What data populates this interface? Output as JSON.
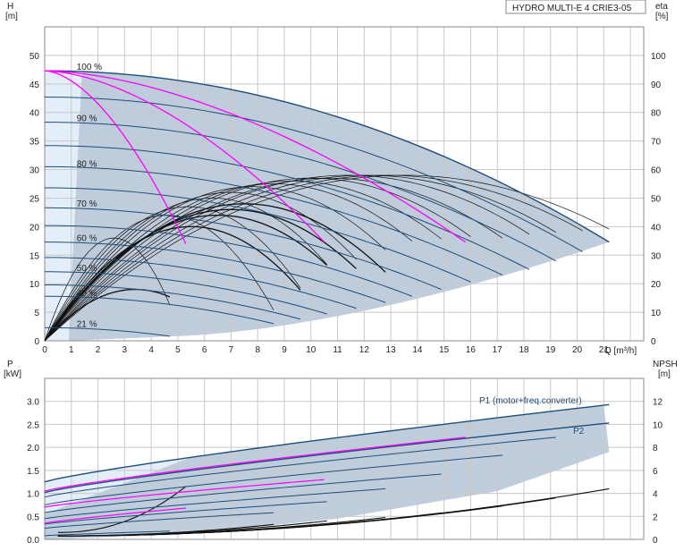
{
  "colors": {
    "envelope_fill": "#b9c8d8",
    "envelope_light": "#e4eef8",
    "envelope_edge": "#1f4e79",
    "curve_dark": "#1f4e79",
    "curve_black": "#111111",
    "curve_magenta": "#ff00ff"
  },
  "chart_data": [
    {
      "type": "line",
      "title": "HYDRO MULTI-E 4 CRIE3-05",
      "xlabel": "Q [m³/h]",
      "ylabel": "H\n[m]",
      "ylabel_right": "eta\n[%]",
      "xlim": [
        0,
        22.5
      ],
      "ylim": [
        0,
        55
      ],
      "ylim_right": [
        0,
        110
      ],
      "x_ticks": [
        "0",
        "1",
        "2",
        "3",
        "4",
        "5",
        "6",
        "7",
        "8",
        "9",
        "10",
        "11",
        "12",
        "13",
        "14",
        "15",
        "16",
        "17",
        "18",
        "19",
        "20",
        "21"
      ],
      "y_ticks": [
        "0",
        "5",
        "10",
        "15",
        "20",
        "25",
        "30",
        "35",
        "40",
        "45",
        "50"
      ],
      "y_right_ticks": [
        "0",
        "10",
        "20",
        "30",
        "40",
        "50",
        "60",
        "70",
        "80",
        "90",
        "100"
      ],
      "speed_labels": [
        {
          "text": "100 %",
          "q": 1.2,
          "h": 47.5
        },
        {
          "text": "90 %",
          "q": 1.2,
          "h": 38.5
        },
        {
          "text": "80 %",
          "q": 1.2,
          "h": 30.5
        },
        {
          "text": "70 %",
          "q": 1.2,
          "h": 23.5
        },
        {
          "text": "60 %",
          "q": 1.2,
          "h": 17.5
        },
        {
          "text": "50 %",
          "q": 1.2,
          "h": 12.2
        },
        {
          "text": "40 %",
          "q": 1.2,
          "h": 7.8
        },
        {
          "text": "21 %",
          "q": 1.2,
          "h": 2.4
        }
      ],
      "head_curves": [
        {
          "name": "100 %",
          "q_max": 21.2,
          "h0": 47.3,
          "h_end": 17.3
        },
        {
          "name": "95 %",
          "q_max": 20.2,
          "h0": 42.7,
          "h_end": 15.6
        },
        {
          "name": "90 %",
          "q_max": 19.2,
          "h0": 38.3,
          "h_end": 14.0
        },
        {
          "name": "85 %",
          "q_max": 18.2,
          "h0": 34.2,
          "h_end": 12.5
        },
        {
          "name": "80 %",
          "q_max": 17.2,
          "h0": 30.5,
          "h_end": 11.5
        },
        {
          "name": "75 %",
          "q_max": 16.0,
          "h0": 26.8,
          "h_end": 10.3
        },
        {
          "name": "70 %",
          "q_max": 14.9,
          "h0": 23.3,
          "h_end": 9.0
        },
        {
          "name": "65 %",
          "q_max": 13.8,
          "h0": 20.2,
          "h_end": 7.8
        },
        {
          "name": "60 %",
          "q_max": 12.8,
          "h0": 17.3,
          "h_end": 6.7
        },
        {
          "name": "55 %",
          "q_max": 11.7,
          "h0": 14.6,
          "h_end": 5.7
        },
        {
          "name": "50 %",
          "q_max": 10.6,
          "h0": 12.1,
          "h_end": 4.7
        },
        {
          "name": "45 %",
          "q_max": 9.6,
          "h0": 9.8,
          "h_end": 3.8
        },
        {
          "name": "40 %",
          "q_max": 8.6,
          "h0": 7.8,
          "h_end": 3.0
        },
        {
          "name": "21 %",
          "q_max": 4.7,
          "h0": 2.3,
          "h_end": 0.8
        }
      ],
      "efficiency_curves": [
        {
          "q_max": 21.2,
          "q_peak": 13.5,
          "eta_peak": 58
        },
        {
          "q_max": 20.2,
          "q_peak": 12.8,
          "eta_peak": 58
        },
        {
          "q_max": 19.2,
          "q_peak": 12.1,
          "eta_peak": 58
        },
        {
          "q_max": 18.2,
          "q_peak": 11.4,
          "eta_peak": 58
        },
        {
          "q_max": 17.2,
          "q_peak": 10.7,
          "eta_peak": 57
        },
        {
          "q_max": 16.0,
          "q_peak": 10.0,
          "eta_peak": 57
        },
        {
          "q_max": 14.9,
          "q_peak": 9.3,
          "eta_peak": 56
        },
        {
          "q_max": 13.8,
          "q_peak": 8.6,
          "eta_peak": 55
        },
        {
          "q_max": 12.8,
          "q_peak": 7.8,
          "eta_peak": 54
        },
        {
          "q_max": 11.7,
          "q_peak": 7.0,
          "eta_peak": 52
        },
        {
          "q_max": 10.6,
          "q_peak": 6.3,
          "eta_peak": 50
        },
        {
          "q_max": 9.6,
          "q_peak": 5.4,
          "eta_peak": 47
        },
        {
          "q_max": 8.6,
          "q_peak": 4.6,
          "eta_peak": 44
        },
        {
          "q_max": 4.7,
          "q_peak": 2.6,
          "eta_peak": 36
        }
      ],
      "efficiency_total_curves": [
        {
          "q_max": 12.8,
          "q_peak": 7.5,
          "eta_peak": 48
        },
        {
          "q_max": 11.7,
          "q_peak": 7.0,
          "eta_peak": 46
        },
        {
          "q_max": 10.6,
          "q_peak": 6.5,
          "eta_peak": 44
        },
        {
          "q_max": 9.6,
          "q_peak": 5.5,
          "eta_peak": 40
        },
        {
          "q_max": 4.7,
          "q_peak": 3.4,
          "eta_peak": 18
        }
      ],
      "system_curves": [
        {
          "q_end": 5.3,
          "h_end": 17.0
        },
        {
          "q_end": 10.5,
          "h_end": 17.3
        },
        {
          "q_end": 15.8,
          "h_end": 17.3
        }
      ]
    },
    {
      "type": "line",
      "xlabel": "",
      "ylabel": "P\n[kW]",
      "ylabel_right": "NPSH\n[m]",
      "xlim": [
        0,
        22.5
      ],
      "ylim": [
        0,
        3.5
      ],
      "ylim_right": [
        0,
        14
      ],
      "y_ticks": [
        "0.0",
        "0.5",
        "1.0",
        "1.5",
        "2.0",
        "2.5",
        "3.0"
      ],
      "y_right_ticks": [
        "0",
        "2",
        "4",
        "6",
        "8",
        "10",
        "12"
      ],
      "series_labels": [
        "P1 (motor+freq.converter)",
        "P2"
      ],
      "power_curves": [
        {
          "name": "P1 (motor+freq.converter)",
          "q_max": 21.2,
          "p0": 1.25,
          "p_end": 2.93
        },
        {
          "name": "P2",
          "q_max": 21.2,
          "p0": 1.02,
          "p_end": 2.53
        },
        {
          "q_max": 19.2,
          "p0": 0.92,
          "p_end": 2.22
        },
        {
          "q_max": 17.2,
          "p0": 0.75,
          "p_end": 1.83
        },
        {
          "q_max": 14.9,
          "p0": 0.58,
          "p_end": 1.42
        },
        {
          "q_max": 12.8,
          "p0": 0.45,
          "p_end": 1.1
        },
        {
          "q_max": 10.6,
          "p0": 0.33,
          "p_end": 0.82
        },
        {
          "q_max": 8.6,
          "p0": 0.24,
          "p_end": 0.58
        },
        {
          "q_max": 4.7,
          "p0": 0.08,
          "p_end": 0.18
        }
      ],
      "power_magenta": [
        {
          "q_max": 15.8,
          "p0": 1.05,
          "p_end": 2.22
        },
        {
          "q_max": 10.5,
          "p0": 0.7,
          "p_end": 1.3
        },
        {
          "q_max": 5.3,
          "p0": 0.35,
          "p_end": 0.68
        }
      ],
      "npsh_curves": [
        {
          "q_start": 0.5,
          "q_end": 21.2,
          "n_end": 4.4
        },
        {
          "q_start": 0.5,
          "q_end": 19.2,
          "n_end": 3.6
        },
        {
          "q_start": 0.5,
          "q_end": 17.2,
          "n_end": 2.9
        },
        {
          "q_start": 0.5,
          "q_end": 14.9,
          "n_end": 2.3
        },
        {
          "q_start": 0.5,
          "q_end": 12.8,
          "n_end": 1.9
        },
        {
          "q_start": 0.5,
          "q_end": 10.6,
          "n_end": 1.6
        },
        {
          "q_start": 0.5,
          "q_end": 8.6,
          "n_end": 1.3
        },
        {
          "q_start": 0.5,
          "q_end": 5.3,
          "n_end": 4.6
        }
      ]
    }
  ]
}
